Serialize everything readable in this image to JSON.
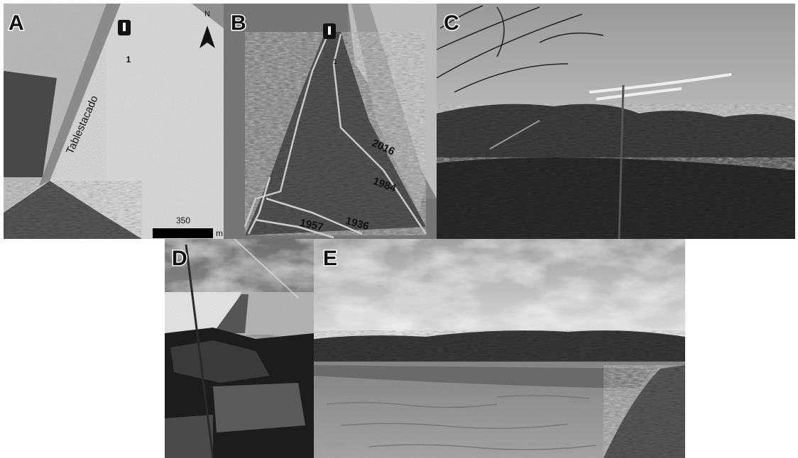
{
  "panels": [
    {
      "label": "A",
      "road_label": "Tablestacado",
      "point_label": "1",
      "scale_value": "350",
      "scale_unit": "m",
      "north": "N"
    },
    {
      "label": "B",
      "point_label": "1",
      "years": [
        "2016",
        "1984",
        "1957",
        "1936"
      ]
    },
    {
      "label": "C"
    },
    {
      "label": "D"
    },
    {
      "label": "E"
    }
  ]
}
